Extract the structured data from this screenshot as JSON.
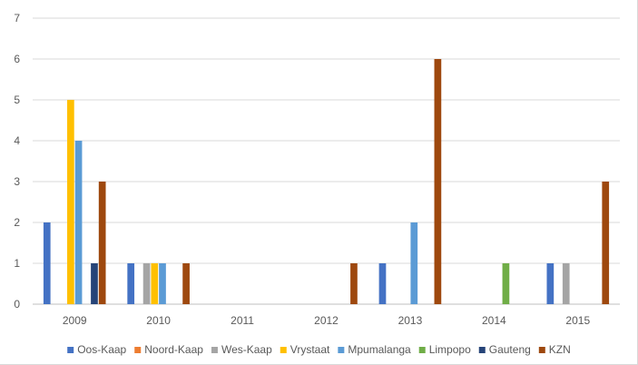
{
  "chart_data": {
    "type": "bar",
    "categories": [
      "2009",
      "2010",
      "2011",
      "2012",
      "2013",
      "2014",
      "2015"
    ],
    "ylim": [
      0,
      7
    ],
    "yticks": [
      0,
      1,
      2,
      3,
      4,
      5,
      6,
      7
    ],
    "grid": true,
    "legend_position": "bottom",
    "series": [
      {
        "name": "Oos-Kaap",
        "color": "#4472c4",
        "values": [
          2,
          1,
          0,
          0,
          1,
          0,
          1
        ]
      },
      {
        "name": "Noord-Kaap",
        "color": "#ed7d31",
        "values": [
          0,
          0,
          0,
          0,
          0,
          0,
          0
        ]
      },
      {
        "name": "Wes-Kaap",
        "color": "#a5a5a5",
        "values": [
          0,
          1,
          0,
          0,
          0,
          0,
          1
        ]
      },
      {
        "name": "Vrystaat",
        "color": "#ffc000",
        "values": [
          5,
          1,
          0,
          0,
          0,
          0,
          0
        ]
      },
      {
        "name": "Mpumalanga",
        "color": "#5b9bd5",
        "values": [
          4,
          1,
          0,
          0,
          2,
          0,
          0
        ]
      },
      {
        "name": "Limpopo",
        "color": "#70ad47",
        "values": [
          0,
          0,
          0,
          0,
          0,
          1,
          0
        ]
      },
      {
        "name": "Gauteng",
        "color": "#264478",
        "values": [
          1,
          0,
          0,
          0,
          0,
          0,
          0
        ]
      },
      {
        "name": "KZN",
        "color": "#9e480e",
        "values": [
          3,
          1,
          0,
          1,
          6,
          0,
          3
        ]
      }
    ]
  }
}
